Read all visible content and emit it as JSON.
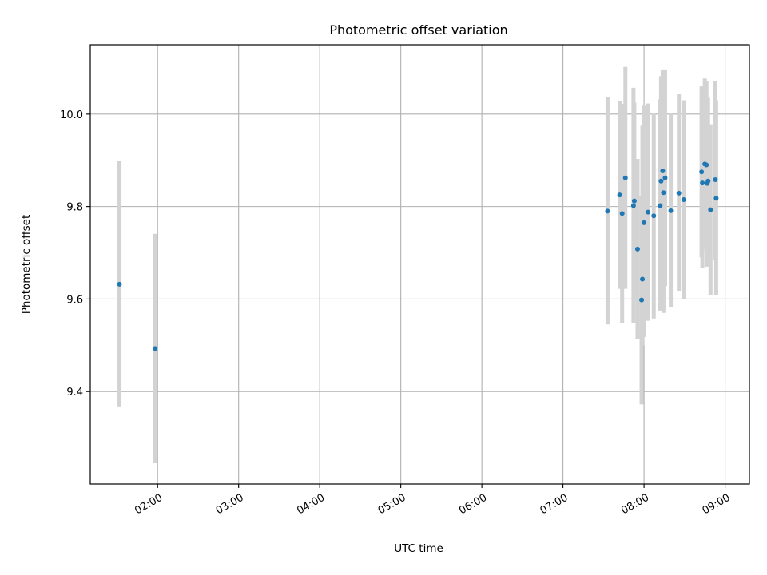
{
  "chart_data": {
    "type": "scatter",
    "title": "Photometric offset variation",
    "xlabel": "UTC time",
    "ylabel": "Photometric offset",
    "x_unit": "hours UTC",
    "xlim": [
      1.17,
      9.3
    ],
    "ylim": [
      9.2,
      10.15
    ],
    "x_ticks": [
      {
        "value": 2,
        "label": "02:00"
      },
      {
        "value": 3,
        "label": "03:00"
      },
      {
        "value": 4,
        "label": "04:00"
      },
      {
        "value": 5,
        "label": "05:00"
      },
      {
        "value": 6,
        "label": "06:00"
      },
      {
        "value": 7,
        "label": "07:00"
      },
      {
        "value": 8,
        "label": "08:00"
      },
      {
        "value": 9,
        "label": "09:00"
      }
    ],
    "y_ticks": [
      {
        "value": 9.4,
        "label": "9.4"
      },
      {
        "value": 9.6,
        "label": "9.6"
      },
      {
        "value": 9.8,
        "label": "9.8"
      },
      {
        "value": 10.0,
        "label": "10.0"
      }
    ],
    "grid": true,
    "colors": {
      "point": "#1f77b4",
      "errorbar": "#d3d3d3",
      "grid": "#b0b0b0"
    },
    "series": [
      {
        "points": [
          {
            "x": 1.53,
            "y": 9.632,
            "err_low": 9.366,
            "err_high": 9.898
          },
          {
            "x": 1.97,
            "y": 9.493,
            "err_low": 9.245,
            "err_high": 9.741
          },
          {
            "x": 7.55,
            "y": 9.79,
            "err_low": 9.545,
            "err_high": 10.037
          },
          {
            "x": 7.7,
            "y": 9.825,
            "err_low": 9.622,
            "err_high": 10.028
          },
          {
            "x": 7.73,
            "y": 9.785,
            "err_low": 9.548,
            "err_high": 10.022
          },
          {
            "x": 7.77,
            "y": 9.862,
            "err_low": 9.622,
            "err_high": 10.102
          },
          {
            "x": 7.87,
            "y": 9.802,
            "err_low": 9.548,
            "err_high": 10.057
          },
          {
            "x": 7.88,
            "y": 9.812,
            "err_low": 9.595,
            "err_high": 10.025
          },
          {
            "x": 7.92,
            "y": 9.708,
            "err_low": 9.513,
            "err_high": 9.903
          },
          {
            "x": 7.97,
            "y": 9.598,
            "err_low": 9.372,
            "err_high": 9.824
          },
          {
            "x": 7.98,
            "y": 9.643,
            "err_low": 9.5,
            "err_high": 9.975
          },
          {
            "x": 8.0,
            "y": 9.765,
            "err_low": 9.518,
            "err_high": 10.018
          },
          {
            "x": 8.05,
            "y": 9.788,
            "err_low": 9.553,
            "err_high": 10.023
          },
          {
            "x": 8.12,
            "y": 9.78,
            "err_low": 9.558,
            "err_high": 10.002
          },
          {
            "x": 8.2,
            "y": 9.802,
            "err_low": 9.575,
            "err_high": 10.032
          },
          {
            "x": 8.21,
            "y": 9.855,
            "err_low": 9.63,
            "err_high": 10.082
          },
          {
            "x": 8.23,
            "y": 9.877,
            "err_low": 9.652,
            "err_high": 10.095
          },
          {
            "x": 8.24,
            "y": 9.83,
            "err_low": 9.57,
            "err_high": 10.092
          },
          {
            "x": 8.26,
            "y": 9.862,
            "err_low": 9.628,
            "err_high": 10.095
          },
          {
            "x": 8.33,
            "y": 9.791,
            "err_low": 9.582,
            "err_high": 10.003
          },
          {
            "x": 8.43,
            "y": 9.829,
            "err_low": 9.618,
            "err_high": 10.043
          },
          {
            "x": 8.49,
            "y": 9.815,
            "err_low": 9.6,
            "err_high": 10.03
          },
          {
            "x": 8.71,
            "y": 9.875,
            "err_low": 9.69,
            "err_high": 10.06
          },
          {
            "x": 8.72,
            "y": 9.851,
            "err_low": 9.668,
            "err_high": 10.035
          },
          {
            "x": 8.75,
            "y": 9.892,
            "err_low": 9.71,
            "err_high": 10.077
          },
          {
            "x": 8.77,
            "y": 9.89,
            "err_low": 9.7,
            "err_high": 10.072
          },
          {
            "x": 8.78,
            "y": 9.85,
            "err_low": 9.67,
            "err_high": 10.028
          },
          {
            "x": 8.79,
            "y": 9.855,
            "err_low": 9.675,
            "err_high": 10.035
          },
          {
            "x": 8.82,
            "y": 9.793,
            "err_low": 9.608,
            "err_high": 9.978
          },
          {
            "x": 8.88,
            "y": 9.858,
            "err_low": 9.685,
            "err_high": 10.072
          },
          {
            "x": 8.89,
            "y": 9.818,
            "err_low": 9.608,
            "err_high": 10.03
          }
        ]
      }
    ]
  }
}
